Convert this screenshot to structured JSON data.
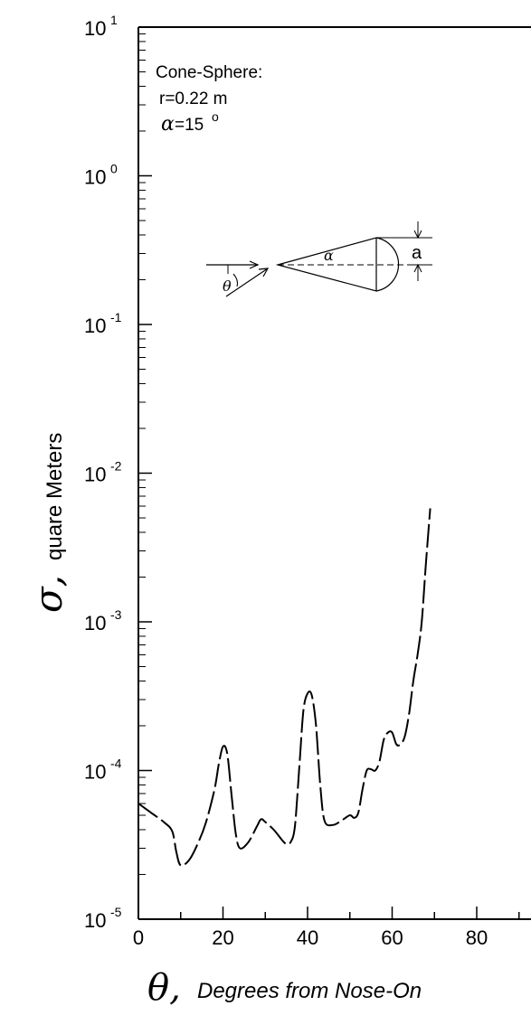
{
  "chart_data": {
    "type": "line",
    "title": "",
    "xlabel": {
      "symbol": "θ,",
      "text": "Degrees from Nose-On"
    },
    "ylabel": {
      "symbol": "σ,",
      "text": "quare Meters"
    },
    "xlim": [
      0,
      90
    ],
    "ylim": [
      1e-05,
      10
    ],
    "yscale": "log",
    "x_ticks": [
      0,
      20,
      40,
      60,
      80
    ],
    "y_ticks": [
      {
        "value": 10,
        "base": "10",
        "exp": "1"
      },
      {
        "value": 1,
        "base": "10",
        "exp": "0"
      },
      {
        "value": 0.1,
        "base": "10",
        "exp": "-1"
      },
      {
        "value": 0.01,
        "base": "10",
        "exp": "-2"
      },
      {
        "value": 0.001,
        "base": "10",
        "exp": "-3"
      },
      {
        "value": 0.0001,
        "base": "10",
        "exp": "-4"
      },
      {
        "value": 1e-05,
        "base": "10",
        "exp": "-5"
      }
    ],
    "grid": false,
    "line_style": "dashed",
    "series": [
      {
        "name": "",
        "x": [
          0,
          3,
          6,
          8,
          9,
          10,
          12,
          14,
          16,
          18,
          19,
          20,
          21,
          22,
          23,
          24,
          26,
          28,
          29,
          30,
          32,
          34,
          35,
          36,
          37,
          38,
          39,
          40,
          41,
          42,
          43,
          44,
          46,
          48,
          50,
          51,
          52,
          53,
          54,
          55,
          56,
          57,
          58,
          59,
          60,
          61,
          62,
          63,
          64,
          65,
          66,
          67,
          68,
          69
        ],
        "y": [
          6e-05,
          5.2e-05,
          4.5e-05,
          3.9e-05,
          2.8e-05,
          2.3e-05,
          2.5e-05,
          3.2e-05,
          4.5e-05,
          7.5e-05,
          0.00011,
          0.000145,
          0.00013,
          7e-05,
          3.8e-05,
          3e-05,
          3.3e-05,
          4.2e-05,
          4.7e-05,
          4.5e-05,
          4e-05,
          3.4e-05,
          3.2e-05,
          3.3e-05,
          4.2e-05,
          0.0001,
          0.00025,
          0.00033,
          0.00032,
          0.0002,
          8e-05,
          4.6e-05,
          4.3e-05,
          4.6e-05,
          5e-05,
          4.8e-05,
          5.2e-05,
          7.5e-05,
          0.0001,
          0.000102,
          0.0001,
          0.000115,
          0.00016,
          0.00018,
          0.00018,
          0.00015,
          0.00015,
          0.00017,
          0.00024,
          0.0004,
          0.0006,
          0.001,
          0.0025,
          0.0058
        ]
      }
    ]
  },
  "annotation": {
    "line1": "Cone-Sphere:",
    "line2": "r=0.22 m",
    "alpha_symbol": "α",
    "alpha_value": "=15",
    "alpha_unit": "o"
  },
  "diagram": {
    "alpha_label": "α",
    "theta_label": "θ",
    "a_label": "a"
  }
}
